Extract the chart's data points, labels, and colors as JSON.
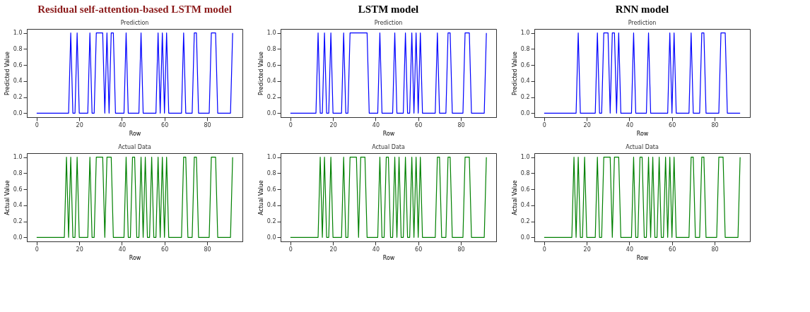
{
  "chart_data": [
    {
      "type": "line",
      "title": "Residual self-attention-based LSTM model",
      "subtitle": "Prediction",
      "xlabel": "Row",
      "ylabel": "Predicted Value",
      "xlim": [
        -4.6,
        96.6
      ],
      "ylim": [
        -0.05,
        1.05
      ],
      "xticks": [
        0,
        20,
        40,
        60,
        80
      ],
      "yticks": [
        {
          "value": 0,
          "label": "0.0"
        },
        {
          "value": 0.2,
          "label": "0.2"
        },
        {
          "value": 0.4,
          "label": "0.4"
        },
        {
          "value": 0.6,
          "label": "0.6"
        },
        {
          "value": 0.8,
          "label": "0.8"
        },
        {
          "value": 1,
          "label": "1.0"
        }
      ],
      "x": [
        0,
        1,
        2,
        3,
        4,
        5,
        6,
        7,
        8,
        9,
        10,
        11,
        12,
        13,
        14,
        15,
        16,
        17,
        18,
        19,
        20,
        21,
        22,
        23,
        24,
        25,
        26,
        27,
        28,
        29,
        30,
        31,
        32,
        33,
        34,
        35,
        36,
        37,
        38,
        39,
        40,
        41,
        42,
        43,
        44,
        45,
        46,
        47,
        48,
        49,
        50,
        51,
        52,
        53,
        54,
        55,
        56,
        57,
        58,
        59,
        60,
        61,
        62,
        63,
        64,
        65,
        66,
        67,
        68,
        69,
        70,
        71,
        72,
        73,
        74,
        75,
        76,
        77,
        78,
        79,
        80,
        81,
        82,
        83,
        84,
        85,
        86,
        87,
        88,
        89,
        90,
        91,
        92
      ],
      "series": [
        {
          "color": "#0000ff",
          "values": [
            0,
            0,
            0,
            0,
            0,
            0,
            0,
            0,
            0,
            0,
            0,
            0,
            0,
            0,
            0,
            0,
            1,
            0,
            0,
            1,
            0,
            0,
            0,
            0,
            0,
            1,
            0,
            0,
            1,
            1,
            1,
            1,
            0,
            1,
            0,
            1,
            1,
            0,
            0,
            0,
            0,
            0,
            1,
            0,
            0,
            0,
            0,
            0,
            0,
            1,
            0,
            0,
            0,
            0,
            0,
            0,
            0,
            1,
            0,
            1,
            0,
            1,
            0,
            0,
            0,
            0,
            0,
            0,
            0,
            1,
            0,
            0,
            0,
            0,
            1,
            1,
            0,
            0,
            0,
            0,
            0,
            0,
            1,
            1,
            1,
            0,
            0,
            0,
            0,
            0,
            0,
            0,
            1
          ]
        }
      ]
    },
    {
      "type": "line",
      "title": "LSTM model",
      "subtitle": "Prediction",
      "xlabel": "Row",
      "ylabel": "Predicted Value",
      "xlim": [
        -4.6,
        96.6
      ],
      "ylim": [
        -0.05,
        1.05
      ],
      "xticks": [
        0,
        20,
        40,
        60,
        80
      ],
      "yticks": [
        {
          "value": 0,
          "label": "0.0"
        },
        {
          "value": 0.2,
          "label": "0.2"
        },
        {
          "value": 0.4,
          "label": "0.4"
        },
        {
          "value": 0.6,
          "label": "0.6"
        },
        {
          "value": 0.8,
          "label": "0.8"
        },
        {
          "value": 1,
          "label": "1.0"
        }
      ],
      "x": [
        0,
        1,
        2,
        3,
        4,
        5,
        6,
        7,
        8,
        9,
        10,
        11,
        12,
        13,
        14,
        15,
        16,
        17,
        18,
        19,
        20,
        21,
        22,
        23,
        24,
        25,
        26,
        27,
        28,
        29,
        30,
        31,
        32,
        33,
        34,
        35,
        36,
        37,
        38,
        39,
        40,
        41,
        42,
        43,
        44,
        45,
        46,
        47,
        48,
        49,
        50,
        51,
        52,
        53,
        54,
        55,
        56,
        57,
        58,
        59,
        60,
        61,
        62,
        63,
        64,
        65,
        66,
        67,
        68,
        69,
        70,
        71,
        72,
        73,
        74,
        75,
        76,
        77,
        78,
        79,
        80,
        81,
        82,
        83,
        84,
        85,
        86,
        87,
        88,
        89,
        90,
        91,
        92
      ],
      "series": [
        {
          "color": "#0000ff",
          "values": [
            0,
            0,
            0,
            0,
            0,
            0,
            0,
            0,
            0,
            0,
            0,
            0,
            0,
            1,
            0,
            0,
            1,
            0,
            0,
            1,
            0,
            0,
            0,
            0,
            0,
            1,
            0,
            0,
            1,
            1,
            1,
            1,
            1,
            1,
            1,
            1,
            1,
            0,
            0,
            0,
            0,
            0,
            1,
            0,
            0,
            0,
            0,
            0,
            0,
            1,
            0,
            0,
            0,
            0,
            1,
            0,
            0,
            1,
            0,
            1,
            0,
            1,
            0,
            0,
            0,
            0,
            0,
            0,
            0,
            1,
            0,
            0,
            0,
            0,
            1,
            1,
            0,
            0,
            0,
            0,
            0,
            0,
            1,
            1,
            1,
            0,
            0,
            0,
            0,
            0,
            0,
            0,
            1
          ]
        }
      ]
    },
    {
      "type": "line",
      "title": "RNN model",
      "subtitle": "Prediction",
      "xlabel": "Row",
      "ylabel": "Predicted Value",
      "xlim": [
        -4.6,
        96.6
      ],
      "ylim": [
        -0.05,
        1.05
      ],
      "xticks": [
        0,
        20,
        40,
        60,
        80
      ],
      "yticks": [
        {
          "value": 0,
          "label": "0.0"
        },
        {
          "value": 0.2,
          "label": "0.2"
        },
        {
          "value": 0.4,
          "label": "0.4"
        },
        {
          "value": 0.6,
          "label": "0.6"
        },
        {
          "value": 0.8,
          "label": "0.8"
        },
        {
          "value": 1,
          "label": "1.0"
        }
      ],
      "x": [
        0,
        1,
        2,
        3,
        4,
        5,
        6,
        7,
        8,
        9,
        10,
        11,
        12,
        13,
        14,
        15,
        16,
        17,
        18,
        19,
        20,
        21,
        22,
        23,
        24,
        25,
        26,
        27,
        28,
        29,
        30,
        31,
        32,
        33,
        34,
        35,
        36,
        37,
        38,
        39,
        40,
        41,
        42,
        43,
        44,
        45,
        46,
        47,
        48,
        49,
        50,
        51,
        52,
        53,
        54,
        55,
        56,
        57,
        58,
        59,
        60,
        61,
        62,
        63,
        64,
        65,
        66,
        67,
        68,
        69,
        70,
        71,
        72,
        73,
        74,
        75,
        76,
        77,
        78,
        79,
        80,
        81,
        82,
        83,
        84,
        85,
        86,
        87,
        88,
        89,
        90,
        91,
        92
      ],
      "series": [
        {
          "color": "#0000ff",
          "values": [
            0,
            0,
            0,
            0,
            0,
            0,
            0,
            0,
            0,
            0,
            0,
            0,
            0,
            0,
            0,
            0,
            1,
            0,
            0,
            0,
            0,
            0,
            0,
            0,
            0,
            1,
            0,
            0,
            1,
            1,
            1,
            0,
            1,
            1,
            0,
            1,
            0,
            0,
            0,
            0,
            0,
            0,
            1,
            0,
            0,
            0,
            0,
            0,
            0,
            1,
            0,
            0,
            0,
            0,
            0,
            0,
            0,
            0,
            0,
            1,
            0,
            1,
            0,
            0,
            0,
            0,
            0,
            0,
            0,
            1,
            0,
            0,
            0,
            0,
            1,
            1,
            0,
            0,
            0,
            0,
            0,
            0,
            0,
            1,
            1,
            1,
            0,
            0,
            0,
            0,
            0,
            0,
            0
          ]
        }
      ]
    },
    {
      "type": "line",
      "title": "Actual Data",
      "xlabel": "Row",
      "ylabel": "Actual Value",
      "xlim": [
        -4.6,
        96.6
      ],
      "ylim": [
        -0.05,
        1.05
      ],
      "xticks": [
        0,
        20,
        40,
        60,
        80
      ],
      "yticks": [
        {
          "value": 0,
          "label": "0.0"
        },
        {
          "value": 0.2,
          "label": "0.2"
        },
        {
          "value": 0.4,
          "label": "0.4"
        },
        {
          "value": 0.6,
          "label": "0.6"
        },
        {
          "value": 0.8,
          "label": "0.8"
        },
        {
          "value": 1,
          "label": "1.0"
        }
      ],
      "x": [
        0,
        1,
        2,
        3,
        4,
        5,
        6,
        7,
        8,
        9,
        10,
        11,
        12,
        13,
        14,
        15,
        16,
        17,
        18,
        19,
        20,
        21,
        22,
        23,
        24,
        25,
        26,
        27,
        28,
        29,
        30,
        31,
        32,
        33,
        34,
        35,
        36,
        37,
        38,
        39,
        40,
        41,
        42,
        43,
        44,
        45,
        46,
        47,
        48,
        49,
        50,
        51,
        52,
        53,
        54,
        55,
        56,
        57,
        58,
        59,
        60,
        61,
        62,
        63,
        64,
        65,
        66,
        67,
        68,
        69,
        70,
        71,
        72,
        73,
        74,
        75,
        76,
        77,
        78,
        79,
        80,
        81,
        82,
        83,
        84,
        85,
        86,
        87,
        88,
        89,
        90,
        91,
        92
      ],
      "series": [
        {
          "color": "#008000",
          "values": [
            0,
            0,
            0,
            0,
            0,
            0,
            0,
            0,
            0,
            0,
            0,
            0,
            0,
            0,
            1,
            0,
            1,
            0,
            0,
            1,
            0,
            0,
            0,
            0,
            0,
            1,
            0,
            0,
            1,
            1,
            1,
            1,
            0,
            1,
            1,
            1,
            0,
            0,
            0,
            0,
            0,
            0,
            1,
            0,
            0,
            1,
            1,
            0,
            0,
            1,
            0,
            1,
            0,
            0,
            1,
            0,
            0,
            1,
            0,
            1,
            0,
            1,
            0,
            0,
            0,
            0,
            0,
            0,
            0,
            1,
            1,
            0,
            0,
            0,
            1,
            1,
            0,
            0,
            0,
            0,
            0,
            0,
            1,
            1,
            1,
            0,
            0,
            0,
            0,
            0,
            0,
            0,
            1
          ]
        }
      ]
    },
    {
      "type": "line",
      "title": "Actual Data",
      "xlabel": "Row",
      "ylabel": "Actual Value",
      "xlim": [
        -4.6,
        96.6
      ],
      "ylim": [
        -0.05,
        1.05
      ],
      "xticks": [
        0,
        20,
        40,
        60,
        80
      ],
      "yticks": [
        {
          "value": 0,
          "label": "0.0"
        },
        {
          "value": 0.2,
          "label": "0.2"
        },
        {
          "value": 0.4,
          "label": "0.4"
        },
        {
          "value": 0.6,
          "label": "0.6"
        },
        {
          "value": 0.8,
          "label": "0.8"
        },
        {
          "value": 1,
          "label": "1.0"
        }
      ],
      "x": [
        0,
        1,
        2,
        3,
        4,
        5,
        6,
        7,
        8,
        9,
        10,
        11,
        12,
        13,
        14,
        15,
        16,
        17,
        18,
        19,
        20,
        21,
        22,
        23,
        24,
        25,
        26,
        27,
        28,
        29,
        30,
        31,
        32,
        33,
        34,
        35,
        36,
        37,
        38,
        39,
        40,
        41,
        42,
        43,
        44,
        45,
        46,
        47,
        48,
        49,
        50,
        51,
        52,
        53,
        54,
        55,
        56,
        57,
        58,
        59,
        60,
        61,
        62,
        63,
        64,
        65,
        66,
        67,
        68,
        69,
        70,
        71,
        72,
        73,
        74,
        75,
        76,
        77,
        78,
        79,
        80,
        81,
        82,
        83,
        84,
        85,
        86,
        87,
        88,
        89,
        90,
        91,
        92
      ],
      "series": [
        {
          "color": "#008000",
          "values": [
            0,
            0,
            0,
            0,
            0,
            0,
            0,
            0,
            0,
            0,
            0,
            0,
            0,
            0,
            1,
            0,
            1,
            0,
            0,
            1,
            0,
            0,
            0,
            0,
            0,
            1,
            0,
            0,
            1,
            1,
            1,
            1,
            0,
            1,
            1,
            1,
            0,
            0,
            0,
            0,
            0,
            0,
            1,
            0,
            0,
            1,
            1,
            0,
            0,
            1,
            0,
            1,
            0,
            0,
            1,
            0,
            0,
            1,
            0,
            1,
            0,
            1,
            0,
            0,
            0,
            0,
            0,
            0,
            0,
            1,
            1,
            0,
            0,
            0,
            1,
            1,
            0,
            0,
            0,
            0,
            0,
            0,
            1,
            1,
            1,
            0,
            0,
            0,
            0,
            0,
            0,
            0,
            1
          ]
        }
      ]
    },
    {
      "type": "line",
      "title": "Actual Data",
      "xlabel": "Row",
      "ylabel": "Actual Value",
      "xlim": [
        -4.6,
        96.6
      ],
      "ylim": [
        -0.05,
        1.05
      ],
      "xticks": [
        0,
        20,
        40,
        60,
        80
      ],
      "yticks": [
        {
          "value": 0,
          "label": "0.0"
        },
        {
          "value": 0.2,
          "label": "0.2"
        },
        {
          "value": 0.4,
          "label": "0.4"
        },
        {
          "value": 0.6,
          "label": "0.6"
        },
        {
          "value": 0.8,
          "label": "0.8"
        },
        {
          "value": 1,
          "label": "1.0"
        }
      ],
      "x": [
        0,
        1,
        2,
        3,
        4,
        5,
        6,
        7,
        8,
        9,
        10,
        11,
        12,
        13,
        14,
        15,
        16,
        17,
        18,
        19,
        20,
        21,
        22,
        23,
        24,
        25,
        26,
        27,
        28,
        29,
        30,
        31,
        32,
        33,
        34,
        35,
        36,
        37,
        38,
        39,
        40,
        41,
        42,
        43,
        44,
        45,
        46,
        47,
        48,
        49,
        50,
        51,
        52,
        53,
        54,
        55,
        56,
        57,
        58,
        59,
        60,
        61,
        62,
        63,
        64,
        65,
        66,
        67,
        68,
        69,
        70,
        71,
        72,
        73,
        74,
        75,
        76,
        77,
        78,
        79,
        80,
        81,
        82,
        83,
        84,
        85,
        86,
        87,
        88,
        89,
        90,
        91,
        92
      ],
      "series": [
        {
          "color": "#008000",
          "values": [
            0,
            0,
            0,
            0,
            0,
            0,
            0,
            0,
            0,
            0,
            0,
            0,
            0,
            0,
            1,
            0,
            1,
            0,
            0,
            1,
            0,
            0,
            0,
            0,
            0,
            1,
            0,
            0,
            1,
            1,
            1,
            1,
            0,
            1,
            1,
            1,
            0,
            0,
            0,
            0,
            0,
            0,
            1,
            0,
            0,
            1,
            1,
            0,
            0,
            1,
            0,
            1,
            0,
            0,
            1,
            0,
            0,
            1,
            0,
            1,
            0,
            1,
            0,
            0,
            0,
            0,
            0,
            0,
            0,
            1,
            1,
            0,
            0,
            0,
            1,
            1,
            0,
            0,
            0,
            0,
            0,
            0,
            1,
            1,
            1,
            0,
            0,
            0,
            0,
            0,
            0,
            0,
            1
          ]
        }
      ]
    }
  ]
}
